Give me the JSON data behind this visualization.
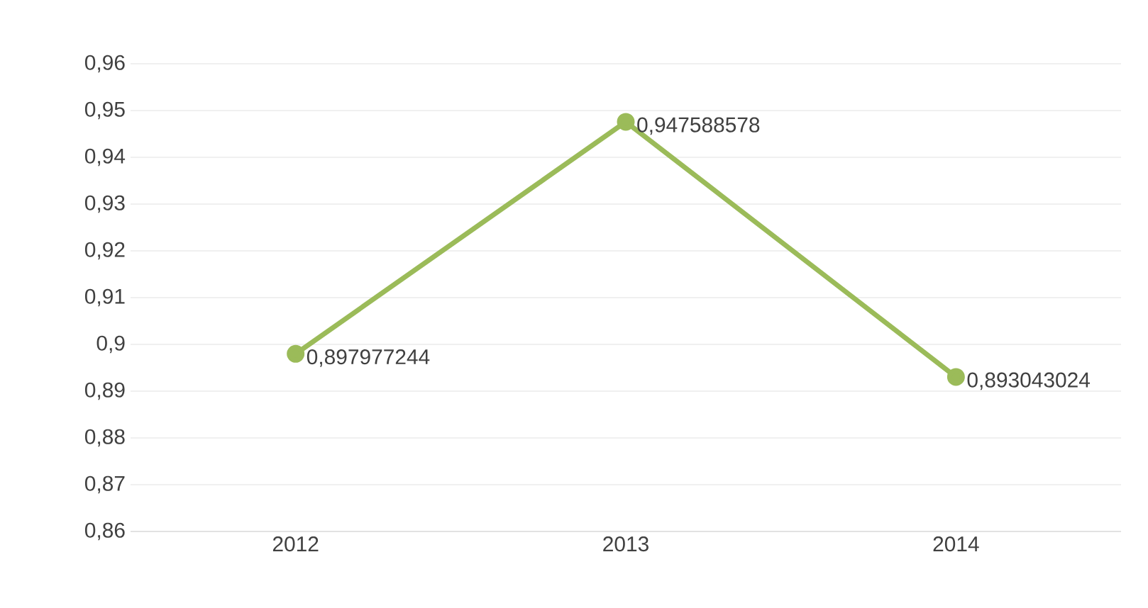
{
  "chart_data": {
    "type": "line",
    "categories": [
      "2012",
      "2013",
      "2014"
    ],
    "series": [
      {
        "color": "#9bbb59",
        "values": [
          0.897977244,
          0.947588578,
          0.893043024
        ],
        "value_labels": [
          "0,897977244",
          "0,947588578",
          "0,893043024"
        ]
      }
    ],
    "ylim": [
      0.86,
      0.96
    ],
    "yticks": [
      {
        "value": 0.86,
        "label": "0,86"
      },
      {
        "value": 0.87,
        "label": "0,87"
      },
      {
        "value": 0.88,
        "label": "0,88"
      },
      {
        "value": 0.89,
        "label": "0,89"
      },
      {
        "value": 0.9,
        "label": "0,9"
      },
      {
        "value": 0.91,
        "label": "0,91"
      },
      {
        "value": 0.92,
        "label": "0,92"
      },
      {
        "value": 0.93,
        "label": "0,93"
      },
      {
        "value": 0.94,
        "label": "0,94"
      },
      {
        "value": 0.95,
        "label": "0,95"
      },
      {
        "value": 0.96,
        "label": "0,96"
      }
    ],
    "grid": "y",
    "marker": "circle",
    "line_style": "solid"
  }
}
